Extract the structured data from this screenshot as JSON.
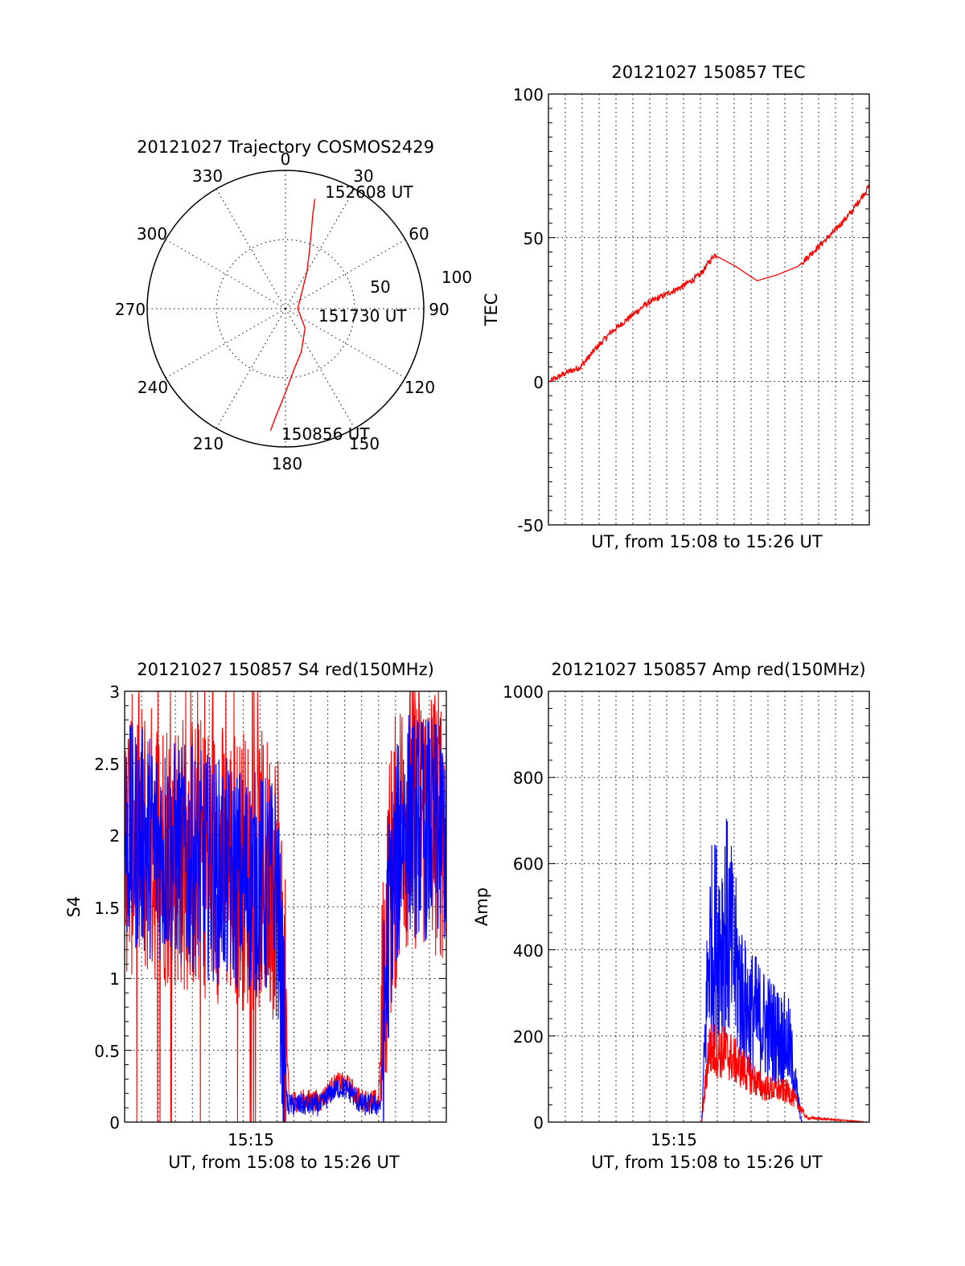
{
  "chart_data": [
    {
      "type": "polar",
      "title": "20121027 Trajectory COSMOS2429",
      "azimuth_labels": [
        "0",
        "30",
        "60",
        "90",
        "120",
        "150",
        "180",
        "210",
        "240",
        "270",
        "300",
        "330"
      ],
      "radial_labels": [
        "50",
        "100"
      ],
      "series": [
        {
          "color": "#ff0000",
          "points": [
            {
              "az": 187,
              "el": 10
            },
            {
              "az": 185,
              "el": 20
            },
            {
              "az": 182,
              "el": 30
            },
            {
              "az": 178,
              "el": 40
            },
            {
              "az": 172,
              "el": 50
            },
            {
              "az": 160,
              "el": 60
            },
            {
              "az": 135,
              "el": 72
            },
            {
              "az": 90,
              "el": 82
            },
            {
              "az": 45,
              "el": 75
            },
            {
              "az": 30,
              "el": 62
            },
            {
              "az": 22,
              "el": 48
            },
            {
              "az": 18,
              "el": 35
            },
            {
              "az": 16,
              "el": 25
            },
            {
              "az": 15,
              "el": 16
            }
          ]
        }
      ],
      "annotations": [
        "152608 UT",
        "151730 UT",
        "150856 UT"
      ]
    },
    {
      "type": "line",
      "title": "20121027 150857 TEC",
      "xlabel": "UT, from 15:08 to 15:26 UT",
      "ylabel": "TEC",
      "ylim": [
        -50,
        100
      ],
      "yticks": [
        "100",
        "50",
        "0",
        "-50"
      ],
      "grid": true,
      "series": [
        {
          "color": "#ff0000",
          "x": [
            0.1,
            1.0,
            1.8,
            2.6,
            3.5,
            4.5,
            5.5,
            6.5,
            7.5,
            8.5,
            9.3,
            10.5,
            11.7,
            12.8,
            14.0,
            15.0,
            16.0,
            17.0,
            18.0
          ],
          "y": [
            0,
            3,
            5,
            11,
            17,
            22,
            27,
            30,
            33,
            37,
            44,
            40,
            35,
            37,
            40,
            46,
            52,
            59,
            68
          ]
        }
      ]
    },
    {
      "type": "line",
      "title": "20121027 150857 S4 red(150MHz)",
      "xlabel": "UT, from 15:08 to 15:26 UT",
      "ylabel": "S4",
      "ylim": [
        0,
        3
      ],
      "yticks": [
        "3",
        "2.5",
        "2",
        "1.5",
        "1",
        "0.5",
        "0"
      ],
      "xticks": [
        "15:15"
      ],
      "grid": true,
      "series": [
        {
          "color": "#ff0000",
          "x": [
            0,
            8.6,
            9.2,
            14.2,
            14.8,
            15.6,
            18
          ],
          "y": [
            2.0,
            1.7,
            0.15,
            0.15,
            1.6,
            2.2,
            2.1
          ]
        },
        {
          "color": "#0000ff",
          "x": [
            0,
            8.5,
            9.1,
            14.3,
            14.8,
            15.6,
            18
          ],
          "y": [
            2.0,
            1.6,
            0.12,
            0.12,
            1.5,
            2.1,
            2.0
          ]
        }
      ]
    },
    {
      "type": "line",
      "title": "20121027 150857 Amp red(150MHz)",
      "xlabel": "UT, from 15:08 to 15:26 UT",
      "ylabel": "Amp",
      "ylim": [
        0,
        1000
      ],
      "yticks": [
        "1000",
        "800",
        "600",
        "400",
        "200",
        "0"
      ],
      "xticks": [
        "15:15"
      ],
      "grid": true,
      "series": [
        {
          "color": "#ff0000",
          "x": [
            0,
            8.6,
            9.0,
            10.0,
            11.0,
            12.0,
            13.5,
            14.5,
            18
          ],
          "y": [
            0,
            0,
            170,
            160,
            120,
            80,
            70,
            10,
            0
          ]
        },
        {
          "color": "#0000ff",
          "x": [
            0,
            8.6,
            9.0,
            10.0,
            11.0,
            12.0,
            13.5,
            14.2,
            18
          ],
          "y": [
            0,
            0,
            400,
            450,
            270,
            230,
            180,
            0,
            0
          ]
        }
      ]
    }
  ]
}
